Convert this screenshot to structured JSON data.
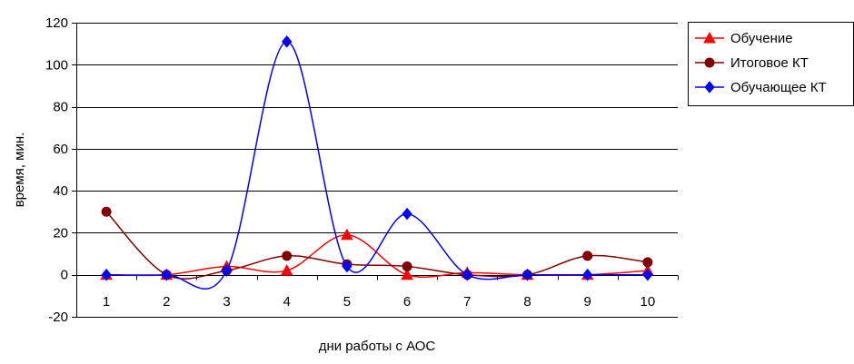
{
  "chart_data": {
    "type": "line",
    "title": "",
    "xlabel": "дни работы с АОС",
    "ylabel": "время, мин.",
    "x": [
      1,
      2,
      3,
      4,
      5,
      6,
      7,
      8,
      9,
      10
    ],
    "ylim": [
      -20,
      120
    ],
    "yticks": [
      -20,
      0,
      20,
      40,
      60,
      80,
      100,
      120
    ],
    "grid": true,
    "smooth": true,
    "legend_position": "right",
    "series": [
      {
        "name": "Обучение",
        "color": "#ff0000",
        "marker": "triangle",
        "values": [
          0,
          0,
          4,
          2,
          19,
          0,
          1,
          0,
          0,
          2
        ]
      },
      {
        "name": "Итоговое КТ",
        "color": "#800000",
        "marker": "circle",
        "values": [
          30,
          0,
          2,
          9,
          5,
          4,
          0,
          0,
          9,
          6
        ]
      },
      {
        "name": "Обучающее КТ",
        "color": "#0000ff",
        "marker": "diamond",
        "values": [
          0,
          0,
          2,
          111,
          4,
          29,
          0,
          0,
          0,
          0
        ]
      }
    ]
  }
}
